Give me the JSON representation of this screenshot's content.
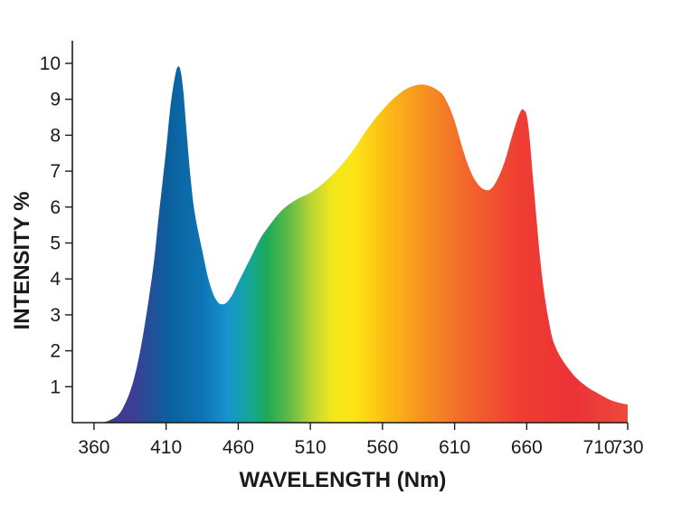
{
  "chart_data": {
    "type": "area",
    "title": "",
    "xlabel": "WAVELENGTH (Nm)",
    "ylabel": "INTENSITY %",
    "xlim": [
      345,
      730
    ],
    "ylim": [
      0,
      10
    ],
    "grid": false,
    "legend": "none",
    "fill": "visible-spectrum gradient (violet to red)",
    "x_ticks": [
      "360",
      "410",
      "460",
      "510",
      "560",
      "610",
      "660",
      "710",
      "730"
    ],
    "y_ticks": [
      "1",
      "2",
      "3",
      "4",
      "5",
      "6",
      "7",
      "8",
      "9",
      "10"
    ],
    "series": [
      {
        "x": [
          363,
          370,
          380,
          390,
          400,
          405,
          410,
          413,
          416,
          418,
          420,
          422,
          424,
          427,
          430,
          435,
          440,
          445,
          450,
          455,
          460,
          465,
          470,
          475,
          480,
          490,
          500,
          510,
          520,
          530,
          540,
          550,
          560,
          570,
          580,
          590,
          600,
          605,
          610,
          615,
          620,
          625,
          630,
          635,
          640,
          645,
          650,
          655,
          658,
          661,
          665,
          670,
          675,
          680,
          690,
          700,
          710,
          720,
          730
        ],
        "y": [
          0,
          0.05,
          0.4,
          1.6,
          4.0,
          5.8,
          7.6,
          8.8,
          9.6,
          9.9,
          9.8,
          9.2,
          8.2,
          6.8,
          5.8,
          4.8,
          3.9,
          3.4,
          3.3,
          3.5,
          3.9,
          4.3,
          4.7,
          5.1,
          5.4,
          5.9,
          6.2,
          6.4,
          6.7,
          7.1,
          7.6,
          8.2,
          8.7,
          9.1,
          9.35,
          9.4,
          9.2,
          8.9,
          8.4,
          7.7,
          7.1,
          6.7,
          6.5,
          6.5,
          6.8,
          7.3,
          8.0,
          8.6,
          8.7,
          8.3,
          6.5,
          4.3,
          2.9,
          2.1,
          1.45,
          1.05,
          0.8,
          0.6,
          0.5
        ]
      }
    ]
  }
}
